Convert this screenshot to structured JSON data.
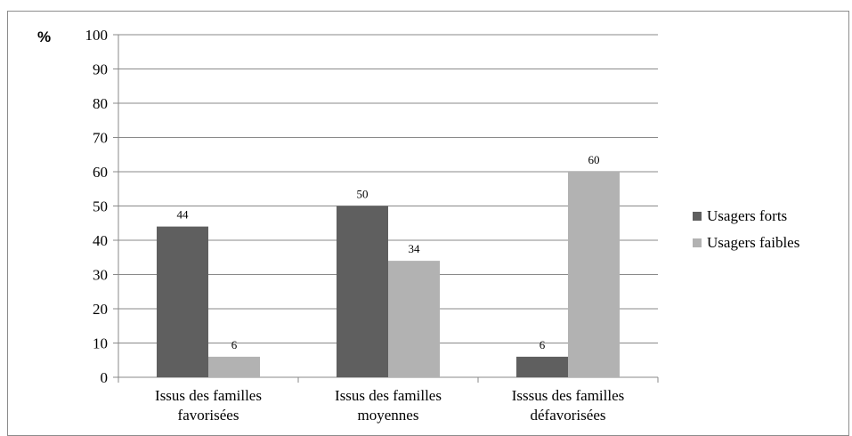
{
  "chart_data": {
    "type": "bar",
    "unit_label": "%",
    "categories": [
      [
        "Issus des familles",
        "favorisées"
      ],
      [
        "Issus des familles",
        "moyennes"
      ],
      [
        "Isssus des familles",
        "défavorisées"
      ]
    ],
    "series": [
      {
        "name": "Usagers forts",
        "values": [
          44,
          50,
          6
        ],
        "color": "#5f5f5f"
      },
      {
        "name": "Usagers faibles",
        "values": [
          6,
          34,
          60
        ],
        "color": "#b2b2b2"
      }
    ],
    "ylim": [
      0,
      100
    ],
    "yticks": [
      0,
      10,
      20,
      30,
      40,
      50,
      60,
      70,
      80,
      90,
      100
    ],
    "grid": true,
    "legend_position": "right"
  }
}
